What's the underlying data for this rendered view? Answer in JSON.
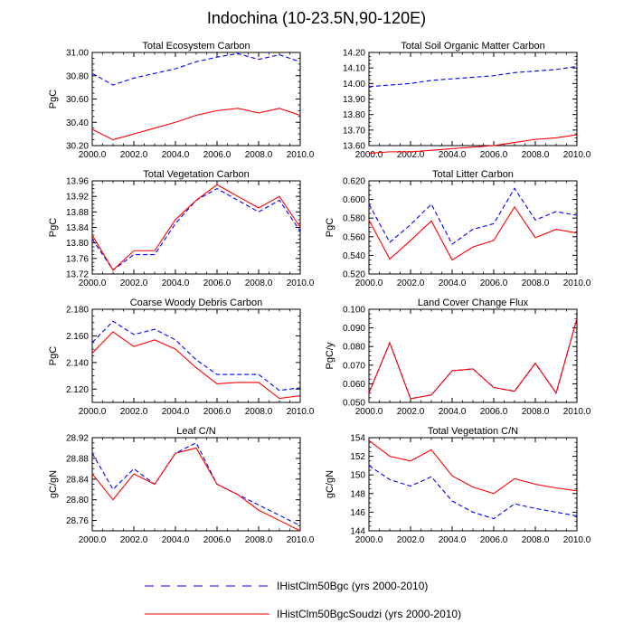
{
  "title": "Indochina (10-23.5N,90-120E)",
  "colors": {
    "series1": "#0000ff",
    "series2": "#ff0000",
    "axis": "#000000"
  },
  "legend": [
    {
      "label": "IHistClm50Bgc (yrs 2000-2010)",
      "color": "#0000ff",
      "dash": "dashed"
    },
    {
      "label": "IHistClm50BgcSoudzi (yrs 2000-2010)",
      "color": "#ff0000",
      "dash": "solid"
    }
  ],
  "chart_data": [
    {
      "type": "line",
      "title": "Total Ecosystem Carbon",
      "ylabel": "PgC",
      "x": [
        2000,
        2001,
        2002,
        2003,
        2004,
        2005,
        2006,
        2007,
        2008,
        2009,
        2010
      ],
      "xlim": [
        2000,
        2010
      ],
      "ylim": [
        30.2,
        31.0
      ],
      "xticks": [
        2000,
        2002,
        2004,
        2006,
        2008,
        2010
      ],
      "xtick_labels": [
        "2000.0",
        "2002.0",
        "2004.0",
        "2006.0",
        "2008.0",
        "2010.0"
      ],
      "yticks": [
        30.2,
        30.4,
        30.6,
        30.8,
        31.0
      ],
      "ytick_labels": [
        "30.20",
        "30.40",
        "30.60",
        "30.80",
        "31.00"
      ],
      "series": [
        {
          "values": [
            30.82,
            30.72,
            30.78,
            30.82,
            30.86,
            30.92,
            30.96,
            30.99,
            30.94,
            30.98,
            30.92
          ],
          "color": "#0000ff",
          "dash": "dashed"
        },
        {
          "values": [
            30.34,
            30.25,
            30.3,
            30.35,
            30.4,
            30.46,
            30.5,
            30.52,
            30.48,
            30.52,
            30.46
          ],
          "color": "#ff0000",
          "dash": "solid"
        }
      ]
    },
    {
      "type": "line",
      "title": "Total Soil Organic Matter Carbon",
      "ylabel": "",
      "x": [
        2000,
        2001,
        2002,
        2003,
        2004,
        2005,
        2006,
        2007,
        2008,
        2009,
        2010
      ],
      "xlim": [
        2000,
        2010
      ],
      "ylim": [
        13.6,
        14.2
      ],
      "xticks": [
        2000,
        2002,
        2004,
        2006,
        2008,
        2010
      ],
      "xtick_labels": [
        "2000.0",
        "2002.0",
        "2004.0",
        "2006.0",
        "2008.0",
        "2010.0"
      ],
      "yticks": [
        13.6,
        13.7,
        13.8,
        13.9,
        14.0,
        14.1,
        14.2
      ],
      "ytick_labels": [
        "13.60",
        "13.70",
        "13.80",
        "13.90",
        "14.00",
        "14.10",
        "14.20"
      ],
      "series": [
        {
          "values": [
            13.98,
            13.99,
            14.0,
            14.02,
            14.03,
            14.04,
            14.05,
            14.07,
            14.08,
            14.09,
            14.11
          ],
          "color": "#0000ff",
          "dash": "dashed"
        },
        {
          "values": [
            13.55,
            13.56,
            13.56,
            13.57,
            13.58,
            13.59,
            13.6,
            13.62,
            13.64,
            13.65,
            13.67
          ],
          "color": "#ff0000",
          "dash": "solid"
        }
      ]
    },
    {
      "type": "line",
      "title": "Total Vegetation Carbon",
      "ylabel": "PgC",
      "x": [
        2000,
        2001,
        2002,
        2003,
        2004,
        2005,
        2006,
        2007,
        2008,
        2009,
        2010
      ],
      "xlim": [
        2000,
        2010
      ],
      "ylim": [
        13.72,
        13.96
      ],
      "xticks": [
        2000,
        2002,
        2004,
        2006,
        2008,
        2010
      ],
      "xtick_labels": [
        "2000.0",
        "2002.0",
        "2004.0",
        "2006.0",
        "2008.0",
        "2010.0"
      ],
      "yticks": [
        13.72,
        13.76,
        13.8,
        13.84,
        13.88,
        13.92,
        13.96
      ],
      "ytick_labels": [
        "13.72",
        "13.76",
        "13.80",
        "13.84",
        "13.88",
        "13.92",
        "13.96"
      ],
      "series": [
        {
          "values": [
            13.81,
            13.73,
            13.77,
            13.77,
            13.85,
            13.91,
            13.94,
            13.91,
            13.88,
            13.91,
            13.83
          ],
          "color": "#0000ff",
          "dash": "dashed"
        },
        {
          "values": [
            13.82,
            13.73,
            13.78,
            13.78,
            13.86,
            13.91,
            13.95,
            13.92,
            13.89,
            13.92,
            13.84
          ],
          "color": "#ff0000",
          "dash": "solid"
        }
      ]
    },
    {
      "type": "line",
      "title": "Total Litter Carbon",
      "ylabel": "PgC",
      "x": [
        2000,
        2001,
        2002,
        2003,
        2004,
        2005,
        2006,
        2007,
        2008,
        2009,
        2010
      ],
      "xlim": [
        2000,
        2010
      ],
      "ylim": [
        0.52,
        0.62
      ],
      "xticks": [
        2000,
        2002,
        2004,
        2006,
        2008,
        2010
      ],
      "xtick_labels": [
        "2000.0",
        "2002.0",
        "2004.0",
        "2006.0",
        "2008.0",
        "2010.0"
      ],
      "yticks": [
        0.52,
        0.54,
        0.56,
        0.58,
        0.6,
        0.62
      ],
      "ytick_labels": [
        "0.520",
        "0.540",
        "0.560",
        "0.580",
        "0.600",
        "0.620"
      ],
      "series": [
        {
          "values": [
            0.595,
            0.554,
            0.573,
            0.595,
            0.552,
            0.568,
            0.574,
            0.612,
            0.578,
            0.587,
            0.583
          ],
          "color": "#0000ff",
          "dash": "dashed"
        },
        {
          "values": [
            0.578,
            0.536,
            0.556,
            0.577,
            0.535,
            0.549,
            0.556,
            0.592,
            0.559,
            0.568,
            0.564
          ],
          "color": "#ff0000",
          "dash": "solid"
        }
      ]
    },
    {
      "type": "line",
      "title": "Coarse Woody Debris Carbon",
      "ylabel": "PgC",
      "x": [
        2000,
        2001,
        2002,
        2003,
        2004,
        2005,
        2006,
        2007,
        2008,
        2009,
        2010
      ],
      "xlim": [
        2000,
        2010
      ],
      "ylim": [
        2.11,
        2.18
      ],
      "xticks": [
        2000,
        2002,
        2004,
        2006,
        2008,
        2010
      ],
      "xtick_labels": [
        "2000.0",
        "2002.0",
        "2004.0",
        "2006.0",
        "2008.0",
        "2010.0"
      ],
      "yticks": [
        2.12,
        2.14,
        2.16,
        2.18
      ],
      "ytick_labels": [
        "2.120",
        "2.140",
        "2.160",
        "2.180"
      ],
      "series": [
        {
          "values": [
            2.155,
            2.171,
            2.161,
            2.165,
            2.157,
            2.142,
            2.131,
            2.131,
            2.131,
            2.119,
            2.121
          ],
          "color": "#0000ff",
          "dash": "dashed"
        },
        {
          "values": [
            2.147,
            2.163,
            2.152,
            2.157,
            2.15,
            2.136,
            2.124,
            2.125,
            2.125,
            2.113,
            2.115
          ],
          "color": "#ff0000",
          "dash": "solid"
        }
      ]
    },
    {
      "type": "line",
      "title": "Land Cover Change Flux",
      "ylabel": "PgC/y",
      "x": [
        2000,
        2001,
        2002,
        2003,
        2004,
        2005,
        2006,
        2007,
        2008,
        2009,
        2010
      ],
      "xlim": [
        2000,
        2010
      ],
      "ylim": [
        0.05,
        0.1
      ],
      "xticks": [
        2000,
        2002,
        2004,
        2006,
        2008,
        2010
      ],
      "xtick_labels": [
        "2000.0",
        "2002.0",
        "2004.0",
        "2006.0",
        "2008.0",
        "2010.0"
      ],
      "yticks": [
        0.05,
        0.06,
        0.07,
        0.08,
        0.09,
        0.1
      ],
      "ytick_labels": [
        "0.050",
        "0.060",
        "0.070",
        "0.080",
        "0.090",
        "0.100"
      ],
      "series": [
        {
          "values": [
            0.055,
            0.082,
            0.052,
            0.054,
            0.067,
            0.068,
            0.058,
            0.056,
            0.071,
            0.055,
            0.095
          ],
          "color": "#0000ff",
          "dash": "dashed"
        },
        {
          "values": [
            0.055,
            0.082,
            0.052,
            0.054,
            0.067,
            0.068,
            0.058,
            0.056,
            0.071,
            0.055,
            0.095
          ],
          "color": "#ff0000",
          "dash": "solid"
        }
      ]
    },
    {
      "type": "line",
      "title": "Leaf C/N",
      "ylabel": "gC/gN",
      "x": [
        2000,
        2001,
        2002,
        2003,
        2004,
        2005,
        2006,
        2007,
        2008,
        2009,
        2010
      ],
      "xlim": [
        2000,
        2010
      ],
      "ylim": [
        28.74,
        28.92
      ],
      "xticks": [
        2000,
        2002,
        2004,
        2006,
        2008,
        2010
      ],
      "xtick_labels": [
        "2000.0",
        "2002.0",
        "2004.0",
        "2006.0",
        "2008.0",
        "2010.0"
      ],
      "yticks": [
        28.76,
        28.8,
        28.84,
        28.88,
        28.92
      ],
      "ytick_labels": [
        "28.76",
        "28.80",
        "28.84",
        "28.88",
        "28.92"
      ],
      "series": [
        {
          "values": [
            28.89,
            28.82,
            28.86,
            28.83,
            28.89,
            28.91,
            28.83,
            28.81,
            28.79,
            28.77,
            28.75
          ],
          "color": "#0000ff",
          "dash": "dashed"
        },
        {
          "values": [
            28.85,
            28.8,
            28.85,
            28.83,
            28.89,
            28.9,
            28.83,
            28.81,
            28.78,
            28.76,
            28.74
          ],
          "color": "#ff0000",
          "dash": "solid"
        }
      ]
    },
    {
      "type": "line",
      "title": "Total Vegetation C/N",
      "ylabel": "gC/gN",
      "x": [
        2000,
        2001,
        2002,
        2003,
        2004,
        2005,
        2006,
        2007,
        2008,
        2009,
        2010
      ],
      "xlim": [
        2000,
        2010
      ],
      "ylim": [
        144,
        154
      ],
      "xticks": [
        2000,
        2002,
        2004,
        2006,
        2008,
        2010
      ],
      "xtick_labels": [
        "2000.0",
        "2002.0",
        "2004.0",
        "2006.0",
        "2008.0",
        "2010.0"
      ],
      "yticks": [
        144,
        146,
        148,
        150,
        152,
        154
      ],
      "ytick_labels": [
        "144",
        "146",
        "148",
        "150",
        "152",
        "154"
      ],
      "series": [
        {
          "values": [
            151.0,
            149.5,
            148.8,
            149.8,
            147.2,
            146.0,
            145.3,
            146.9,
            146.4,
            146.0,
            145.6
          ],
          "color": "#0000ff",
          "dash": "dashed"
        },
        {
          "values": [
            153.7,
            152.0,
            151.5,
            152.7,
            149.9,
            148.7,
            148.0,
            149.6,
            149.0,
            148.6,
            148.3
          ],
          "color": "#ff0000",
          "dash": "solid"
        }
      ]
    }
  ]
}
